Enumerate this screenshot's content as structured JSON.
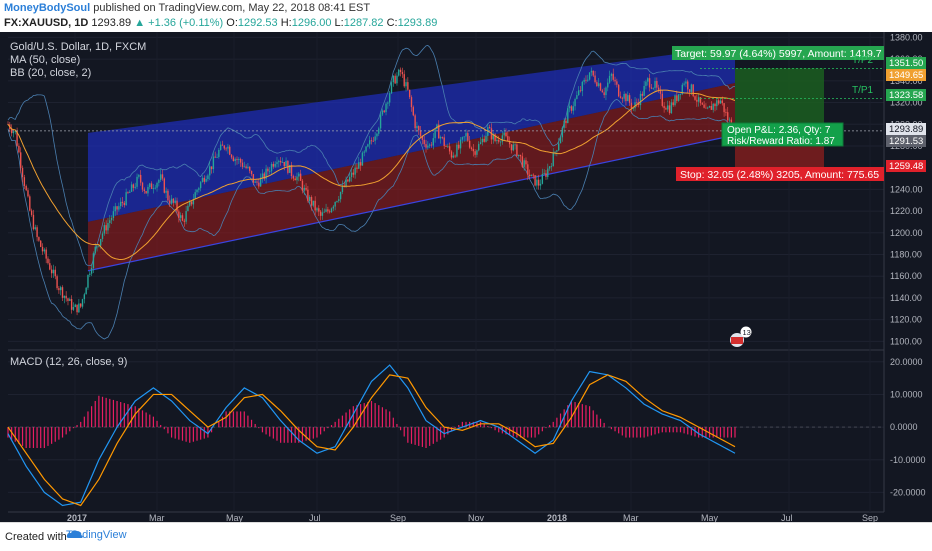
{
  "header": {
    "author": "MoneyBodySoul",
    "published_text": "published on TradingView.com, May 22, 2018 08:41 EST",
    "symbol": "FX:XAUUSD, 1D",
    "last": "1293.89",
    "change": "▲ +1.36 (+0.11%)",
    "o_label": "O:",
    "o_val": "1292.53",
    "h_label": "H:",
    "h_val": "1296.00",
    "l_label": "L:",
    "l_val": "1287.82",
    "c_label": "C:",
    "c_val": "1293.89"
  },
  "legend": {
    "title": "Gold/U.S. Dollar, 1D, FXCM",
    "ma": "MA (50, close)",
    "bb": "BB (20, close, 2)",
    "macd": "MACD (12, 26, close, 9)"
  },
  "position": {
    "target": "Target: 59.97 (4.64%) 5997, Amount: 1419.7",
    "stop": "Stop: 32.05 (2.48%) 3205, Amount: 775.65",
    "pnl": "Open P&L: 2.36, Qty: 7",
    "rr": "Risk/Reward Ratio: 1.87",
    "tp1": "T/P1",
    "tp2": "T/P2"
  },
  "price_labels": {
    "p1": "1351.50",
    "p2": "1349.65",
    "p3": "1323.58",
    "p4": "1293.89",
    "p5": "1291.53",
    "p6": "1259.48"
  },
  "event_badge": "13",
  "footer": {
    "created_with": "Created with",
    "brand": "TradingView"
  },
  "colors": {
    "background": "#131722",
    "up": "#26a69a",
    "down": "#ef5350",
    "channel_upper": "#1e2dbe",
    "channel_lower": "#a21c1c",
    "ma": "#f0a030",
    "bb": "#4a7fb0",
    "macd": "#2196f3",
    "signal": "#ff9800",
    "hist": "#e91e63",
    "target": "#4caf50",
    "stop": "#f44336"
  },
  "chart_data": [
    {
      "type": "candlestick",
      "title": "Gold/U.S. Dollar, 1D, FXCM",
      "x_ticks": [
        "2017",
        "Mar",
        "May",
        "Jul",
        "Sep",
        "Nov",
        "2018",
        "Mar",
        "May",
        "Jul",
        "Sep"
      ],
      "y_ticks": [
        1100,
        1120,
        1140,
        1160,
        1180,
        1200,
        1220,
        1240,
        1260,
        1280,
        1300,
        1320,
        1340,
        1360,
        1380
      ],
      "ylim": [
        1092,
        1385
      ],
      "series_path_close": [
        [
          0,
          1300
        ],
        [
          4,
          1292
        ],
        [
          8,
          1255
        ],
        [
          12,
          1220
        ],
        [
          16,
          1195
        ],
        [
          20,
          1180
        ],
        [
          24,
          1165
        ],
        [
          28,
          1150
        ],
        [
          32,
          1140
        ],
        [
          36,
          1130
        ],
        [
          40,
          1132
        ],
        [
          44,
          1160
        ],
        [
          48,
          1185
        ],
        [
          52,
          1200
        ],
        [
          56,
          1212
        ],
        [
          60,
          1222
        ],
        [
          64,
          1230
        ],
        [
          68,
          1240
        ],
        [
          72,
          1250
        ],
        [
          76,
          1238
        ],
        [
          80,
          1245
        ],
        [
          84,
          1250
        ],
        [
          88,
          1232
        ],
        [
          92,
          1225
        ],
        [
          96,
          1210
        ],
        [
          100,
          1225
        ],
        [
          104,
          1240
        ],
        [
          108,
          1252
        ],
        [
          112,
          1262
        ],
        [
          116,
          1275
        ],
        [
          120,
          1282
        ],
        [
          124,
          1270
        ],
        [
          128,
          1265
        ],
        [
          132,
          1258
        ],
        [
          136,
          1245
        ],
        [
          140,
          1250
        ],
        [
          144,
          1260
        ],
        [
          148,
          1270
        ],
        [
          152,
          1265
        ],
        [
          156,
          1255
        ],
        [
          160,
          1250
        ],
        [
          164,
          1235
        ],
        [
          168,
          1225
        ],
        [
          172,
          1215
        ],
        [
          176,
          1220
        ],
        [
          180,
          1230
        ],
        [
          184,
          1240
        ],
        [
          188,
          1250
        ],
        [
          192,
          1260
        ],
        [
          196,
          1272
        ],
        [
          200,
          1285
        ],
        [
          204,
          1300
        ],
        [
          208,
          1320
        ],
        [
          212,
          1340
        ],
        [
          216,
          1348
        ],
        [
          220,
          1330
        ],
        [
          224,
          1300
        ],
        [
          228,
          1285
        ],
        [
          232,
          1280
        ],
        [
          236,
          1295
        ],
        [
          240,
          1282
        ],
        [
          244,
          1272
        ],
        [
          248,
          1278
        ],
        [
          252,
          1290
        ],
        [
          256,
          1275
        ],
        [
          260,
          1282
        ],
        [
          264,
          1295
        ],
        [
          268,
          1285
        ],
        [
          272,
          1290
        ],
        [
          276,
          1282
        ],
        [
          280,
          1275
        ],
        [
          284,
          1262
        ],
        [
          288,
          1250
        ],
        [
          292,
          1245
        ],
        [
          296,
          1255
        ],
        [
          300,
          1270
        ],
        [
          304,
          1290
        ],
        [
          308,
          1310
        ],
        [
          312,
          1322
        ],
        [
          316,
          1335
        ],
        [
          320,
          1348
        ],
        [
          324,
          1340
        ],
        [
          328,
          1330
        ],
        [
          332,
          1345
        ],
        [
          336,
          1330
        ],
        [
          340,
          1325
        ],
        [
          344,
          1315
        ],
        [
          348,
          1325
        ],
        [
          352,
          1340
        ],
        [
          356,
          1335
        ],
        [
          360,
          1320
        ],
        [
          364,
          1315
        ],
        [
          368,
          1325
        ],
        [
          372,
          1340
        ],
        [
          376,
          1332
        ],
        [
          380,
          1320
        ],
        [
          384,
          1310
        ],
        [
          388,
          1318
        ],
        [
          392,
          1322
        ],
        [
          396,
          1305
        ],
        [
          400,
          1294
        ]
      ],
      "channel": {
        "upper_start": 1292,
        "upper_end": 1372,
        "mid_start": 1210,
        "mid_end": 1338,
        "lower_start": 1165,
        "lower_end": 1290
      },
      "position": {
        "entry": 1293.89,
        "target": 1351.5,
        "stop": 1259.48
      }
    },
    {
      "type": "line",
      "title": "MACD (12, 26, close, 9)",
      "y_ticks": [
        20,
        10,
        0,
        -10,
        -20
      ],
      "ylim": [
        -26,
        23
      ],
      "x": [
        0,
        10,
        20,
        30,
        40,
        50,
        60,
        70,
        80,
        90,
        100,
        110,
        120,
        130,
        140,
        150,
        160,
        170,
        180,
        190,
        200,
        210,
        220,
        230,
        240,
        250,
        260,
        270,
        280,
        290,
        300,
        310,
        320,
        330,
        340,
        350,
        360,
        370,
        380,
        390,
        400
      ],
      "series": [
        {
          "name": "MACD",
          "values": [
            -2,
            -12,
            -20,
            -24,
            -23,
            -10,
            0,
            8,
            12,
            8,
            2,
            -2,
            6,
            12,
            9,
            2,
            -4,
            -8,
            -6,
            4,
            14,
            19,
            12,
            2,
            -2,
            0,
            2,
            0,
            -4,
            -8,
            -4,
            8,
            17,
            16,
            12,
            7,
            4,
            2,
            -2,
            -5,
            -8
          ]
        },
        {
          "name": "Signal",
          "values": [
            0,
            -8,
            -16,
            -22,
            -24,
            -16,
            -5,
            4,
            10,
            10,
            5,
            0,
            3,
            9,
            10,
            5,
            -1,
            -6,
            -7,
            0,
            9,
            16,
            15,
            6,
            0,
            -1,
            1,
            1,
            -2,
            -6,
            -5,
            3,
            13,
            16,
            14,
            9,
            5,
            3,
            0,
            -3,
            -6
          ]
        }
      ]
    }
  ]
}
